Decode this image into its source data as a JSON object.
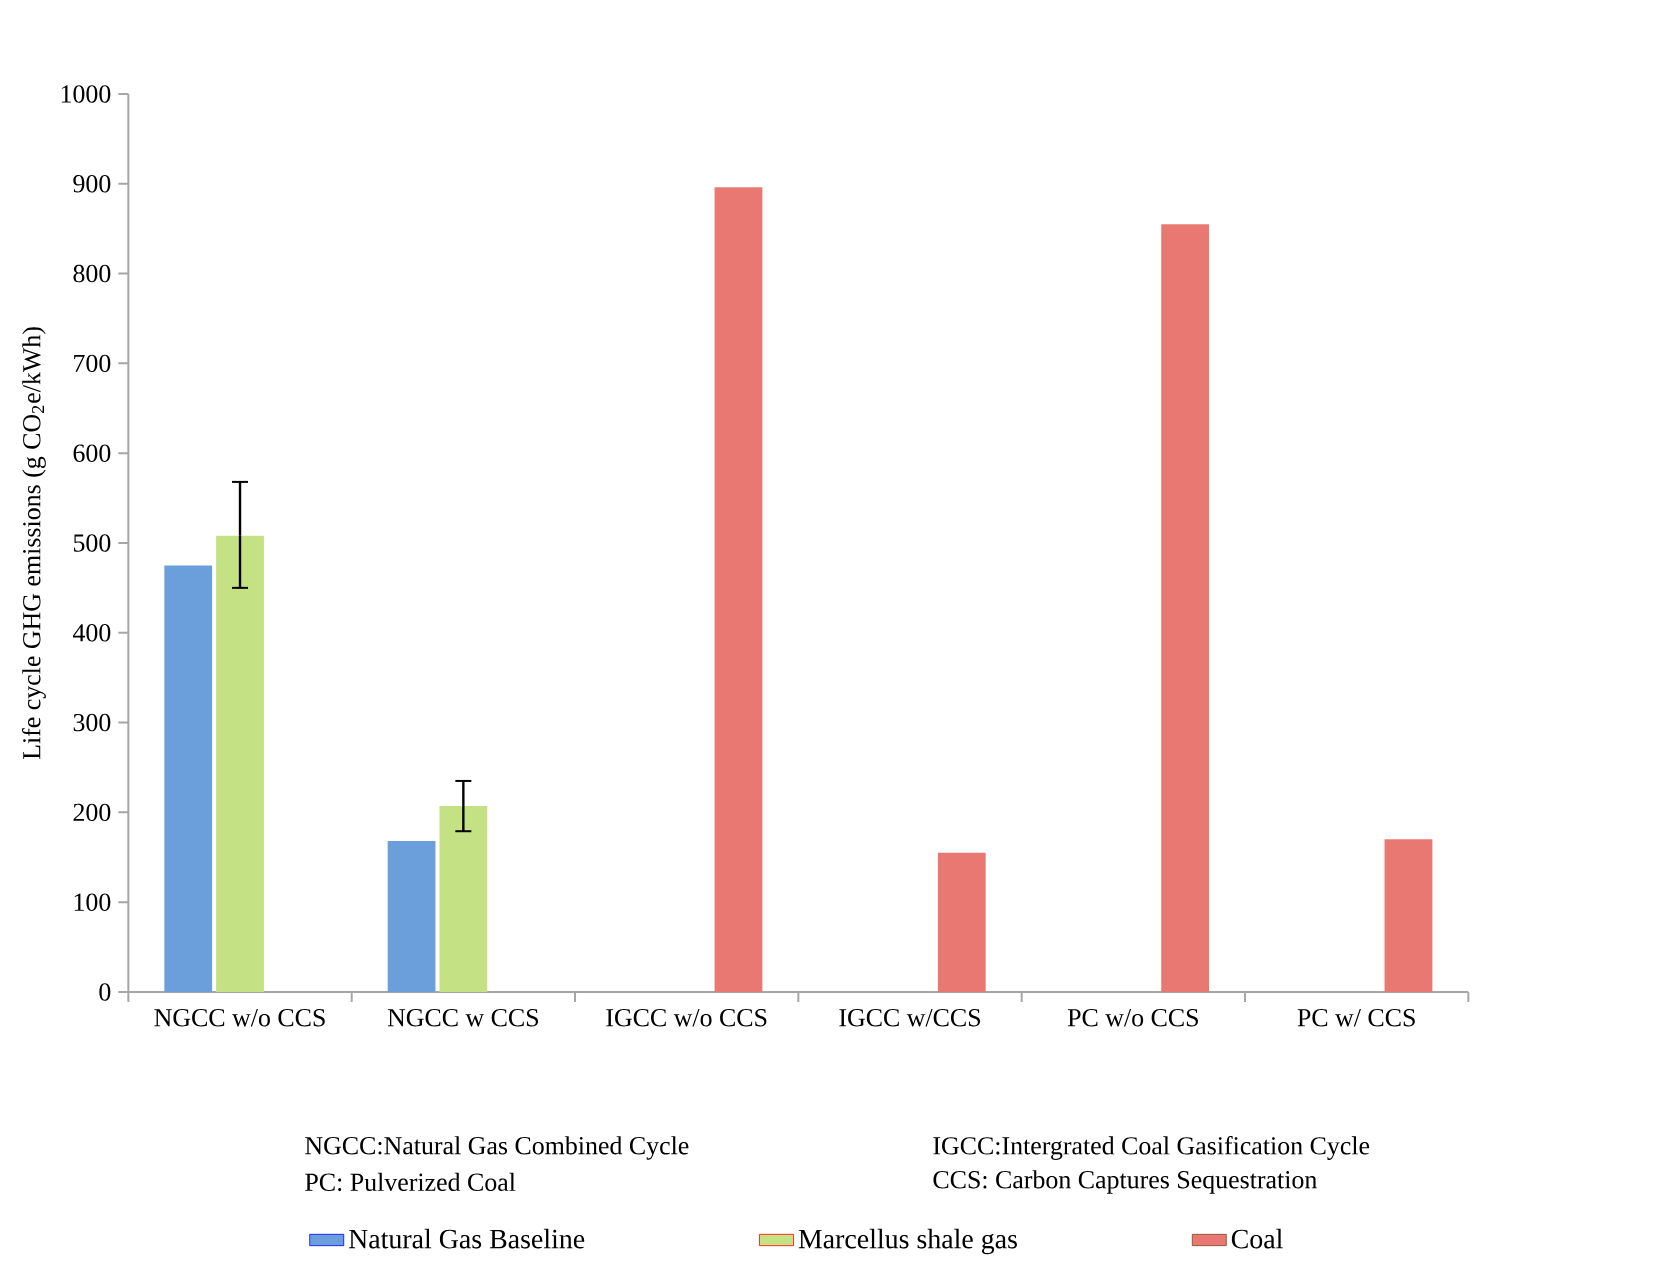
{
  "chart_data": {
    "type": "bar",
    "ylabel": "Life cycle GHG emissions (g CO$_{2}$e/kWh)",
    "categories": [
      "NGCC w/o CCS",
      "NGCC w CCS",
      "IGCC w/o CCS",
      "IGCC w/CCS",
      "PC w/o CCS",
      "PC w/ CCS"
    ],
    "series": [
      {
        "name": "Natural Gas Baseline",
        "color": "#6a9fdc",
        "values": [
          475,
          168,
          null,
          null,
          null,
          null
        ]
      },
      {
        "name": "Marcellus shale gas",
        "color": "#c4e283",
        "values": [
          508,
          207,
          null,
          null,
          null,
          null
        ],
        "errors": [
          [
            450,
            568
          ],
          [
            179,
            235
          ],
          null,
          null,
          null,
          null
        ]
      },
      {
        "name": "Coal",
        "color": "#ea7872",
        "values": [
          null,
          null,
          896,
          155,
          855,
          170
        ]
      }
    ],
    "ylim": [
      0,
      1000
    ],
    "yticks": [
      0,
      100,
      200,
      300,
      400,
      500,
      600,
      700,
      800,
      900,
      1000
    ],
    "grid": false,
    "legend": "bottom",
    "annotations": [
      "NGCC:Natural Gas Combined Cycle",
      "IGCC:Intergrated Coal Gasification Cycle",
      "PC: Pulverized Coal",
      "CCS: Carbon Captures Sequestration"
    ]
  }
}
